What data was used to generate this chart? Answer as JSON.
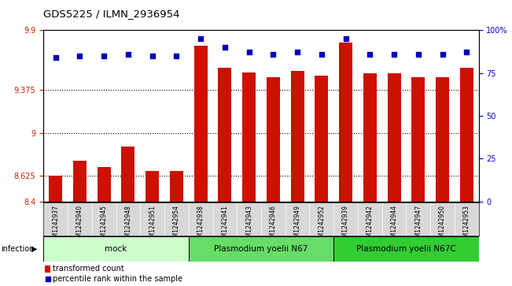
{
  "title": "GDS5225 / ILMN_2936954",
  "samples": [
    "GSM1242937",
    "GSM1242940",
    "GSM1242945",
    "GSM1242948",
    "GSM1242951",
    "GSM1242954",
    "GSM1242938",
    "GSM1242941",
    "GSM1242943",
    "GSM1242946",
    "GSM1242949",
    "GSM1242952",
    "GSM1242939",
    "GSM1242942",
    "GSM1242944",
    "GSM1242947",
    "GSM1242950",
    "GSM1242953"
  ],
  "bar_values": [
    8.63,
    8.76,
    8.7,
    8.88,
    8.67,
    8.67,
    9.76,
    9.57,
    9.53,
    9.49,
    9.54,
    9.5,
    9.79,
    9.52,
    9.52,
    9.49,
    9.49,
    9.57
  ],
  "percentile_values": [
    84,
    85,
    85,
    86,
    85,
    85,
    95,
    90,
    87,
    86,
    87,
    86,
    95,
    86,
    86,
    86,
    86,
    87
  ],
  "ylim_left": [
    8.4,
    9.9
  ],
  "ylim_right": [
    0,
    100
  ],
  "yticks_left": [
    8.4,
    8.625,
    9.0,
    9.375,
    9.9
  ],
  "ytick_labels_left": [
    "8.4",
    "8.625",
    "9",
    "9.375",
    "9.9"
  ],
  "yticks_right": [
    0,
    25,
    50,
    75,
    100
  ],
  "ytick_labels_right": [
    "0",
    "25",
    "50",
    "75",
    "100%"
  ],
  "hlines": [
    8.625,
    9.0,
    9.375
  ],
  "groups": [
    {
      "label": "mock",
      "start": 0,
      "end": 6,
      "color": "#ccffcc"
    },
    {
      "label": "Plasmodium yoelii N67",
      "start": 6,
      "end": 12,
      "color": "#66dd66"
    },
    {
      "label": "Plasmodium yoelii N67C",
      "start": 12,
      "end": 18,
      "color": "#33cc33"
    }
  ],
  "bar_color": "#cc1100",
  "dot_color": "#0000bb",
  "bar_bottom": 8.4,
  "group_row_label": "infection",
  "legend_bar_label": "transformed count",
  "legend_dot_label": "percentile rank within the sample",
  "bar_width": 0.55,
  "tick_label_color_left": "#cc2200",
  "tick_label_color_right": "#0000cc",
  "label_color": "#c8c8c8",
  "label_text_sep_color": "white"
}
